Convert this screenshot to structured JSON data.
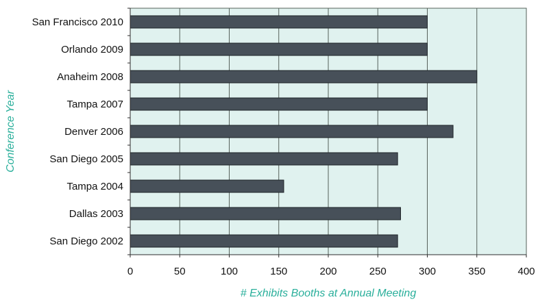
{
  "chart_data": {
    "type": "bar",
    "orientation": "horizontal",
    "categories": [
      "San Francisco 2010",
      "Orlando 2009",
      "Anaheim 2008",
      "Tampa 2007",
      "Denver 2006",
      "San Diego 2005",
      "Tampa 2004",
      "Dallas 2003",
      "San Diego 2002"
    ],
    "values": [
      300,
      300,
      350,
      300,
      326,
      270,
      155,
      273,
      270
    ],
    "xlabel": "# Exhibits Booths at Annual Meeting",
    "ylabel": "Conference Year",
    "xlim": [
      0,
      400
    ],
    "xticks": [
      "0",
      "50",
      "100",
      "150",
      "200",
      "250",
      "300",
      "350",
      "400"
    ],
    "grid": "vertical",
    "legend": "none",
    "colors": {
      "bar": "#475059",
      "plot_background": "#e0f2ef",
      "axis_title": "#2aaf9b",
      "grid": "#55605a"
    }
  }
}
